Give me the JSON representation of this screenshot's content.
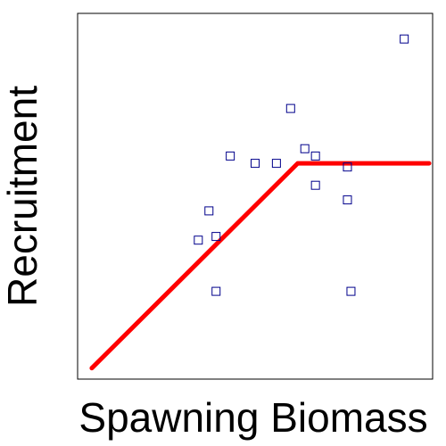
{
  "chart_data": {
    "type": "scatter",
    "title": "",
    "xlabel": "Spawning Biomass",
    "ylabel": "Recruitment",
    "xlim": [
      0,
      100
    ],
    "ylim": [
      0,
      100
    ],
    "grid": false,
    "legend": "none",
    "axis_ticks": false,
    "colors": {
      "points": "#00008b",
      "fit_line": "#ff0000",
      "frame": "#000000",
      "background": "#ffffff"
    },
    "series": [
      {
        "kind": "points",
        "marker": "open-square",
        "points": [
          {
            "x": 34,
            "y": 38
          },
          {
            "x": 37,
            "y": 46
          },
          {
            "x": 39,
            "y": 39
          },
          {
            "x": 39,
            "y": 24
          },
          {
            "x": 43,
            "y": 61
          },
          {
            "x": 50,
            "y": 59
          },
          {
            "x": 56,
            "y": 59
          },
          {
            "x": 60,
            "y": 74
          },
          {
            "x": 64,
            "y": 63
          },
          {
            "x": 67,
            "y": 61
          },
          {
            "x": 67,
            "y": 53
          },
          {
            "x": 76,
            "y": 58
          },
          {
            "x": 76,
            "y": 49
          },
          {
            "x": 77,
            "y": 24
          },
          {
            "x": 92,
            "y": 93
          }
        ]
      },
      {
        "kind": "line",
        "style": "thick-solid",
        "points": [
          {
            "x": 4,
            "y": 3
          },
          {
            "x": 62,
            "y": 59
          },
          {
            "x": 99,
            "y": 59
          }
        ]
      }
    ]
  }
}
